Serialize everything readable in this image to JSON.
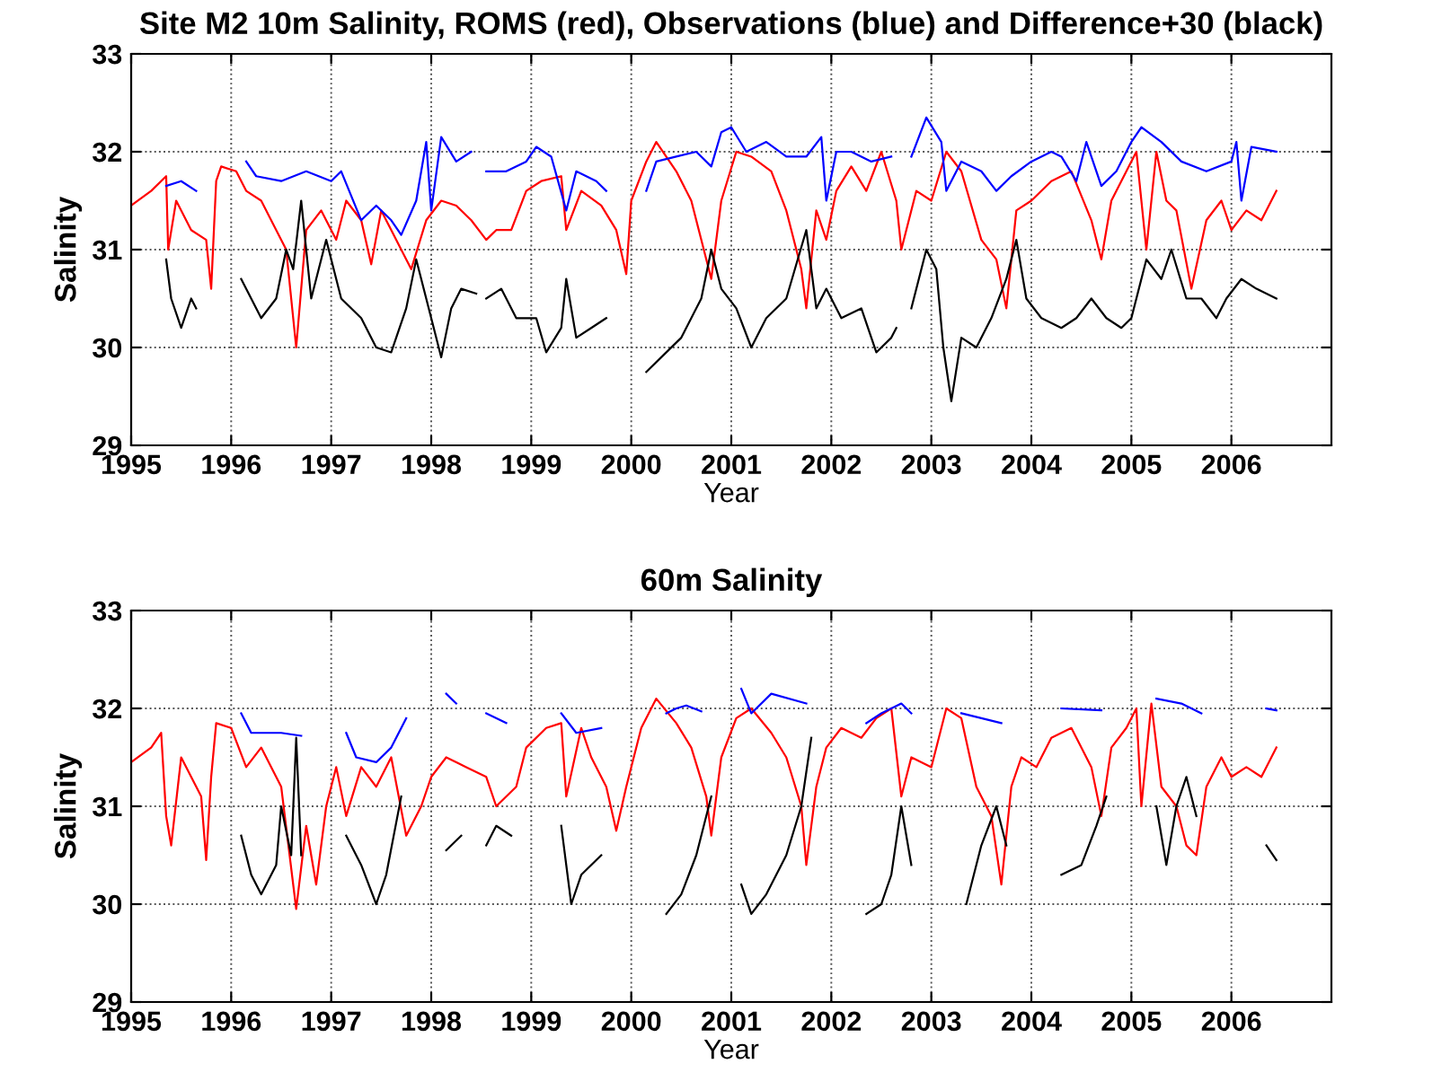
{
  "chart_data": [
    {
      "type": "line",
      "title": "Site M2 10m Salinity, ROMS (red), Observations (blue) and Difference+30 (black)",
      "xlabel": "Year",
      "ylabel": "Salinity",
      "xlim": [
        1995,
        2007
      ],
      "xticks": [
        1995,
        1996,
        1997,
        1998,
        1999,
        2000,
        2001,
        2002,
        2003,
        2004,
        2005,
        2006
      ],
      "ylim": [
        29,
        33
      ],
      "yticks": [
        29,
        30,
        31,
        32,
        33
      ],
      "grid": true,
      "line_style": "solid",
      "marker": "none",
      "series": [
        {
          "color": "#ff0000",
          "x": [
            1995.0,
            1995.2,
            1995.35,
            1995.37,
            1995.45,
            1995.6,
            1995.75,
            1995.8,
            1995.85,
            1995.9,
            1996.05,
            1996.15,
            1996.3,
            1996.45,
            1996.55,
            1996.65,
            1996.75,
            1996.9,
            1997.05,
            1997.15,
            1997.3,
            1997.4,
            1997.5,
            1997.7,
            1997.8,
            1997.95,
            1998.1,
            1998.25,
            1998.4,
            1998.55,
            1998.65,
            1998.8,
            1998.95,
            1999.1,
            1999.3,
            1999.35,
            1999.5,
            1999.7,
            1999.85,
            1999.95,
            2000.0,
            2000.15,
            2000.25,
            2000.45,
            2000.6,
            2000.7,
            2000.8,
            2000.9,
            2001.05,
            2001.2,
            2001.4,
            2001.55,
            2001.7,
            2001.75,
            2001.85,
            2001.95,
            2002.05,
            2002.2,
            2002.35,
            2002.5,
            2002.65,
            2002.7,
            2002.85,
            2003.0,
            2003.15,
            2003.3,
            2003.5,
            2003.65,
            2003.75,
            2003.85,
            2004.0,
            2004.2,
            2004.4,
            2004.6,
            2004.7,
            2004.8,
            2004.95,
            2005.05,
            2005.15,
            2005.25,
            2005.35,
            2005.45,
            2005.6,
            2005.75,
            2005.9,
            2006.0,
            2006.15,
            2006.3,
            2006.45
          ],
          "values": [
            31.45,
            31.6,
            31.75,
            31.0,
            31.5,
            31.2,
            31.1,
            30.6,
            31.7,
            31.85,
            31.8,
            31.6,
            31.5,
            31.2,
            31.0,
            30.0,
            31.2,
            31.4,
            31.1,
            31.5,
            31.3,
            30.85,
            31.4,
            31.0,
            30.8,
            31.3,
            31.5,
            31.45,
            31.3,
            31.1,
            31.2,
            31.2,
            31.6,
            31.7,
            31.75,
            31.2,
            31.6,
            31.45,
            31.2,
            30.75,
            31.5,
            31.9,
            32.1,
            31.8,
            31.5,
            31.1,
            30.7,
            31.5,
            32.0,
            31.95,
            31.8,
            31.4,
            30.8,
            30.4,
            31.4,
            31.1,
            31.6,
            31.85,
            31.6,
            32.0,
            31.5,
            31.0,
            31.6,
            31.5,
            32.0,
            31.8,
            31.1,
            30.9,
            30.4,
            31.4,
            31.5,
            31.7,
            31.8,
            31.3,
            30.9,
            31.5,
            31.8,
            32.0,
            31.0,
            32.0,
            31.5,
            31.4,
            30.6,
            31.3,
            31.5,
            31.2,
            31.4,
            31.3,
            31.6
          ]
        },
        {
          "color": "#0000ff",
          "x": [
            1995.35,
            1995.5,
            1995.65,
            1995.9,
            1996.15,
            1996.25,
            1996.5,
            1996.75,
            1997.0,
            1997.1,
            1997.3,
            1997.45,
            1997.6,
            1997.7,
            1997.85,
            1997.95,
            1998.0,
            1998.1,
            1998.25,
            1998.4,
            1998.47,
            1998.55,
            1998.75,
            1998.95,
            1999.05,
            1999.2,
            1999.35,
            1999.45,
            1999.65,
            1999.75,
            1999.95,
            2000.15,
            2000.25,
            2000.45,
            2000.65,
            2000.8,
            2000.9,
            2001.0,
            2001.15,
            2001.35,
            2001.55,
            2001.75,
            2001.9,
            2001.95,
            2002.05,
            2002.2,
            2002.4,
            2002.6,
            2002.7,
            2002.8,
            2002.95,
            2003.1,
            2003.15,
            2003.3,
            2003.5,
            2003.65,
            2003.8,
            2004.0,
            2004.2,
            2004.3,
            2004.45,
            2004.55,
            2004.7,
            2004.85,
            2005.0,
            2005.1,
            2005.3,
            2005.5,
            2005.75,
            2006.0,
            2006.05,
            2006.1,
            2006.2,
            2006.45
          ],
          "values": [
            31.65,
            31.7,
            31.6,
            null,
            31.9,
            31.75,
            31.7,
            31.8,
            31.7,
            31.8,
            31.3,
            31.45,
            31.3,
            31.15,
            31.5,
            32.1,
            31.4,
            32.15,
            31.9,
            32.0,
            null,
            31.8,
            31.8,
            31.9,
            32.05,
            31.95,
            31.4,
            31.8,
            31.7,
            31.6,
            null,
            31.6,
            31.9,
            31.95,
            32.0,
            31.85,
            32.2,
            32.25,
            32.0,
            32.1,
            31.95,
            31.95,
            32.15,
            31.5,
            32.0,
            32.0,
            31.9,
            31.95,
            null,
            31.95,
            32.35,
            32.1,
            31.6,
            31.9,
            31.8,
            31.6,
            31.75,
            31.9,
            32.0,
            31.95,
            31.7,
            32.1,
            31.65,
            31.8,
            32.1,
            32.25,
            32.1,
            31.9,
            31.8,
            31.9,
            32.1,
            31.5,
            32.05,
            32.0
          ]
        },
        {
          "color": "#000000",
          "x": [
            1995.35,
            1995.4,
            1995.5,
            1995.6,
            1995.65,
            1995.9,
            1996.1,
            1996.3,
            1996.45,
            1996.55,
            1996.62,
            1996.7,
            1996.8,
            1996.95,
            1997.1,
            1997.3,
            1997.45,
            1997.6,
            1997.75,
            1997.85,
            1998.0,
            1998.1,
            1998.2,
            1998.3,
            1998.45,
            1998.5,
            1998.55,
            1998.7,
            1998.85,
            1999.05,
            1999.15,
            1999.3,
            1999.35,
            1999.45,
            1999.6,
            1999.75,
            1999.95,
            2000.15,
            2000.3,
            2000.5,
            2000.7,
            2000.8,
            2000.9,
            2001.05,
            2001.2,
            2001.35,
            2001.55,
            2001.75,
            2001.85,
            2001.95,
            2002.1,
            2002.3,
            2002.45,
            2002.6,
            2002.65,
            2002.72,
            2002.8,
            2002.95,
            2003.05,
            2003.12,
            2003.2,
            2003.3,
            2003.45,
            2003.6,
            2003.75,
            2003.85,
            2003.95,
            2004.1,
            2004.3,
            2004.45,
            2004.6,
            2004.75,
            2004.9,
            2005.0,
            2005.15,
            2005.3,
            2005.4,
            2005.55,
            2005.7,
            2005.85,
            2005.95,
            2006.1,
            2006.25,
            2006.45
          ],
          "values": [
            30.9,
            30.5,
            30.2,
            30.5,
            30.4,
            null,
            30.7,
            30.3,
            30.5,
            31.0,
            30.8,
            31.5,
            30.5,
            31.1,
            30.5,
            30.3,
            30.0,
            29.95,
            30.4,
            30.9,
            30.3,
            29.9,
            30.4,
            30.6,
            30.55,
            null,
            30.5,
            30.6,
            30.3,
            30.3,
            29.95,
            30.2,
            30.7,
            30.1,
            30.2,
            30.3,
            null,
            29.75,
            29.9,
            30.1,
            30.5,
            31.0,
            30.6,
            30.4,
            30.0,
            30.3,
            30.5,
            31.2,
            30.4,
            30.6,
            30.3,
            30.4,
            29.95,
            30.1,
            30.2,
            null,
            30.4,
            31.0,
            30.8,
            30.0,
            29.45,
            30.1,
            30.0,
            30.3,
            30.7,
            31.1,
            30.5,
            30.3,
            30.2,
            30.3,
            30.5,
            30.3,
            30.2,
            30.3,
            30.9,
            30.7,
            31.0,
            30.5,
            30.5,
            30.3,
            30.5,
            30.7,
            30.6,
            30.5
          ]
        }
      ]
    },
    {
      "type": "line",
      "title": "60m Salinity",
      "xlabel": "Year",
      "ylabel": "Salinity",
      "xlim": [
        1995,
        2007
      ],
      "xticks": [
        1995,
        1996,
        1997,
        1998,
        1999,
        2000,
        2001,
        2002,
        2003,
        2004,
        2005,
        2006
      ],
      "ylim": [
        29,
        33
      ],
      "yticks": [
        29,
        30,
        31,
        32,
        33
      ],
      "grid": true,
      "line_style": "solid",
      "marker": "none",
      "series": [
        {
          "color": "#ff0000",
          "x": [
            1995.0,
            1995.2,
            1995.3,
            1995.35,
            1995.4,
            1995.5,
            1995.6,
            1995.7,
            1995.75,
            1995.8,
            1995.85,
            1996.0,
            1996.15,
            1996.3,
            1996.5,
            1996.65,
            1996.75,
            1996.85,
            1996.95,
            1997.05,
            1997.15,
            1997.3,
            1997.45,
            1997.6,
            1997.75,
            1997.9,
            1998.0,
            1998.15,
            1998.35,
            1998.55,
            1998.65,
            1998.85,
            1998.95,
            1999.15,
            1999.3,
            1999.35,
            1999.5,
            1999.6,
            1999.75,
            1999.85,
            1999.95,
            2000.1,
            2000.25,
            2000.45,
            2000.6,
            2000.75,
            2000.8,
            2000.9,
            2001.05,
            2001.2,
            2001.4,
            2001.55,
            2001.7,
            2001.75,
            2001.85,
            2001.95,
            2002.1,
            2002.3,
            2002.45,
            2002.6,
            2002.7,
            2002.8,
            2003.0,
            2003.15,
            2003.3,
            2003.45,
            2003.6,
            2003.7,
            2003.8,
            2003.9,
            2004.05,
            2004.2,
            2004.4,
            2004.6,
            2004.7,
            2004.8,
            2004.95,
            2005.05,
            2005.1,
            2005.2,
            2005.3,
            2005.45,
            2005.55,
            2005.65,
            2005.75,
            2005.9,
            2006.0,
            2006.15,
            2006.3,
            2006.45
          ],
          "values": [
            31.45,
            31.6,
            31.75,
            30.9,
            30.6,
            31.5,
            31.3,
            31.1,
            30.45,
            31.3,
            31.85,
            31.8,
            31.4,
            31.6,
            31.2,
            29.95,
            30.8,
            30.2,
            31.0,
            31.4,
            30.9,
            31.4,
            31.2,
            31.5,
            30.7,
            31.0,
            31.3,
            31.5,
            31.4,
            31.3,
            31.0,
            31.2,
            31.6,
            31.8,
            31.85,
            31.1,
            31.8,
            31.5,
            31.2,
            30.75,
            31.2,
            31.8,
            32.1,
            31.85,
            31.6,
            31.1,
            30.7,
            31.5,
            31.9,
            32.0,
            31.75,
            31.5,
            31.0,
            30.4,
            31.2,
            31.6,
            31.8,
            31.7,
            31.9,
            32.0,
            31.1,
            31.5,
            31.4,
            32.0,
            31.9,
            31.2,
            30.9,
            30.2,
            31.2,
            31.5,
            31.4,
            31.7,
            31.8,
            31.4,
            30.9,
            31.6,
            31.8,
            32.0,
            31.0,
            32.05,
            31.2,
            31.0,
            30.6,
            30.5,
            31.2,
            31.5,
            31.3,
            31.4,
            31.3,
            31.6
          ]
        },
        {
          "color": "#0000ff",
          "x": [
            1996.1,
            1996.2,
            1996.5,
            1996.7,
            1996.9,
            1997.15,
            1997.25,
            1997.45,
            1997.6,
            1997.75,
            1997.95,
            1998.15,
            1998.25,
            1998.4,
            1998.55,
            1998.75,
            1999.0,
            1999.3,
            1999.45,
            1999.7,
            2000.0,
            2000.35,
            2000.45,
            2000.55,
            2000.7,
            2000.9,
            2001.1,
            2001.2,
            2001.4,
            2001.75,
            2002.0,
            2002.35,
            2002.5,
            2002.7,
            2002.8,
            2003.0,
            2003.3,
            2003.5,
            2003.7,
            2004.0,
            2004.3,
            2004.7,
            2005.0,
            2005.25,
            2005.5,
            2005.7,
            2006.0,
            2006.35,
            2006.45
          ],
          "values": [
            31.95,
            31.75,
            31.75,
            31.72,
            null,
            31.75,
            31.5,
            31.45,
            31.6,
            31.9,
            null,
            32.15,
            32.05,
            null,
            31.95,
            31.85,
            null,
            31.95,
            31.75,
            31.8,
            null,
            31.95,
            32.0,
            32.03,
            31.97,
            null,
            32.2,
            31.95,
            32.15,
            32.05,
            null,
            31.85,
            31.95,
            32.05,
            31.95,
            null,
            31.95,
            31.9,
            31.85,
            null,
            32.0,
            31.98,
            null,
            32.1,
            32.05,
            31.95,
            null,
            32.0,
            31.98
          ]
        },
        {
          "color": "#000000",
          "x": [
            1996.1,
            1996.2,
            1996.3,
            1996.45,
            1996.5,
            1996.6,
            1996.65,
            1996.7,
            1996.9,
            1997.15,
            1997.3,
            1997.45,
            1997.55,
            1997.7,
            1997.95,
            1998.15,
            1998.3,
            1998.4,
            1998.55,
            1998.65,
            1998.8,
            1999.0,
            1999.3,
            1999.4,
            1999.5,
            1999.7,
            2000.0,
            2000.35,
            2000.5,
            2000.65,
            2000.8,
            2000.95,
            2001.1,
            2001.2,
            2001.35,
            2001.55,
            2001.7,
            2001.8,
            2002.0,
            2002.35,
            2002.5,
            2002.6,
            2002.7,
            2002.8,
            2003.0,
            2003.35,
            2003.5,
            2003.65,
            2003.75,
            2004.0,
            2004.3,
            2004.5,
            2004.65,
            2004.75,
            2005.0,
            2005.25,
            2005.35,
            2005.45,
            2005.55,
            2005.65,
            2006.0,
            2006.35,
            2006.45
          ],
          "values": [
            30.7,
            30.3,
            30.1,
            30.4,
            31.0,
            30.5,
            31.7,
            30.5,
            null,
            30.7,
            30.4,
            30.0,
            30.3,
            31.1,
            null,
            30.55,
            30.7,
            null,
            30.6,
            30.8,
            30.7,
            null,
            30.8,
            30.0,
            30.3,
            30.5,
            null,
            29.9,
            30.1,
            30.5,
            31.1,
            null,
            30.2,
            29.9,
            30.1,
            30.5,
            31.0,
            31.7,
            null,
            29.9,
            30.0,
            30.3,
            31.0,
            30.4,
            null,
            30.0,
            30.6,
            31.0,
            30.6,
            null,
            30.3,
            30.4,
            30.8,
            31.1,
            null,
            31.0,
            30.4,
            31.0,
            31.3,
            30.9,
            null,
            30.6,
            30.45
          ]
        }
      ]
    }
  ]
}
